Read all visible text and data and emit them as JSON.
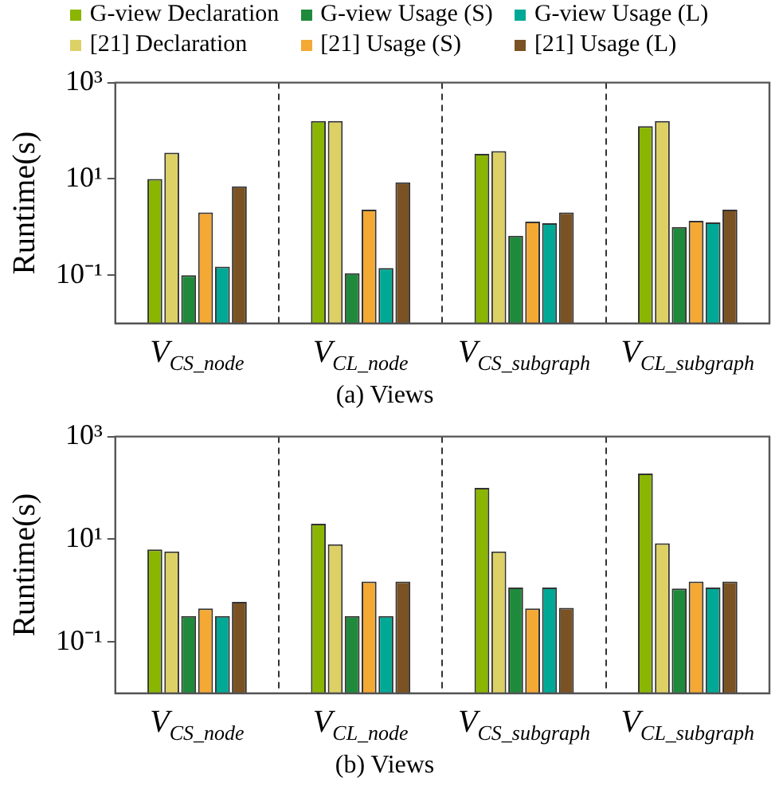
{
  "chart_data": [
    {
      "type": "bar",
      "title": "(a) Views",
      "ylabel": "Runtime(s)",
      "categories": [
        "V$_{CS_node}$",
        "V$_{CL_node}$",
        "V$_{CS_subgraph}$",
        "V$_{CL_subgraph}$"
      ],
      "log": true,
      "ylim": [
        0.01,
        1000
      ],
      "yticks": [
        {
          "value": 0.1,
          "label": "10⁻¹"
        },
        {
          "value": 10,
          "label": "10¹"
        },
        {
          "value": 1000,
          "label": "10³"
        }
      ],
      "grid": "x",
      "legend": "top",
      "series": [
        {
          "name": "G-view Declaration",
          "color": "#8ab500",
          "values": [
            10,
            160,
            33,
            125
          ]
        },
        {
          "name": "[21] Declaration",
          "color": "#ddd166",
          "values": [
            35,
            160,
            38,
            160
          ]
        },
        {
          "name": "G-view Usage (S)",
          "color": "#1f8a3c",
          "values": [
            0.1,
            0.11,
            0.66,
            1.0
          ]
        },
        {
          "name": "[21] Usage (S)",
          "color": "#f4a934",
          "values": [
            2,
            2.3,
            1.3,
            1.35
          ]
        },
        {
          "name": "G-view Usage (L)",
          "color": "#00a896",
          "values": [
            0.15,
            0.14,
            1.2,
            1.25
          ]
        },
        {
          "name": "[21] Usage (L)",
          "color": "#7a5223",
          "values": [
            7,
            8.5,
            2,
            2.3
          ]
        }
      ]
    },
    {
      "type": "bar",
      "title": "(b) Views",
      "ylabel": "Runtime(s)",
      "categories": [
        "V$_{CS_node}$",
        "V$_{CL_node}$",
        "V$_{CS_subgraph}$",
        "V$_{CL_subgraph}$"
      ],
      "log": true,
      "ylim": [
        0.01,
        1000
      ],
      "yticks": [
        {
          "value": 0.1,
          "label": "10⁻¹"
        },
        {
          "value": 10,
          "label": "10¹"
        },
        {
          "value": 1000,
          "label": "10³"
        }
      ],
      "grid": "x",
      "series": [
        {
          "color": "#8ab500",
          "values": [
            6.3,
            20,
            100,
            190
          ]
        },
        {
          "color": "#ddd166",
          "values": [
            5.8,
            8,
            5.8,
            8.3
          ]
        },
        {
          "color": "#1f8a3c",
          "values": [
            0.32,
            0.32,
            1.15,
            1.1
          ]
        },
        {
          "color": "#f4a934",
          "values": [
            0.45,
            1.5,
            0.45,
            1.5
          ]
        },
        {
          "color": "#00a896",
          "values": [
            0.32,
            0.32,
            1.15,
            1.15
          ]
        },
        {
          "color": "#7a5223",
          "values": [
            0.6,
            1.5,
            0.46,
            1.5
          ]
        }
      ]
    }
  ]
}
